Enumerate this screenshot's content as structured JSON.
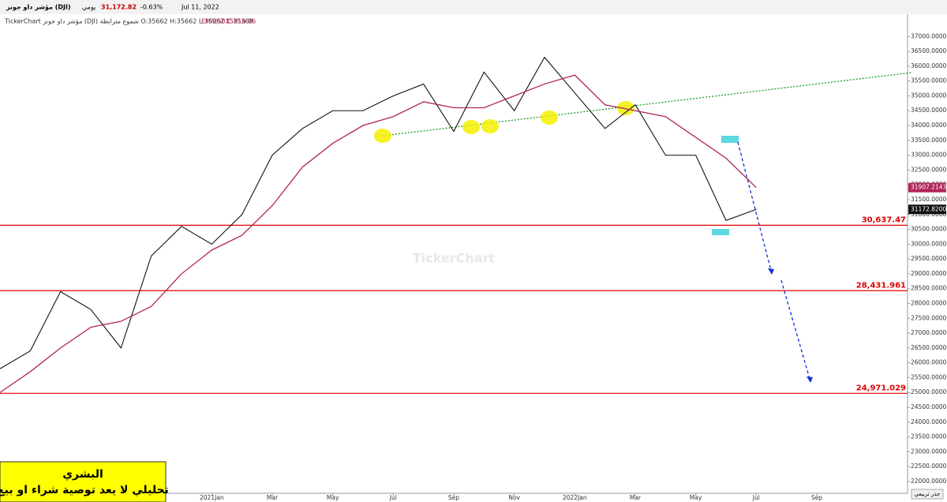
{
  "header": {
    "name": "مؤشر داو جونز (DJI)",
    "period": "يومي",
    "price": "31,172.82",
    "arrow": "▼",
    "change": "-0.63%",
    "date": "Jul 11, 2022",
    "info": "TickerChart مؤشر داو جونز (DJI) شموع مترابطة O:35662 H:35662 L:35262 C:35368",
    "ema_label": "EMA(50)",
    "ema_value": "35816.96"
  },
  "watermark": "TickerChart",
  "note": {
    "author": "البشري",
    "disclaimer": "تحليلي لا يعد توصية شراء او بيع"
  },
  "scale_button": "جذر تربيعي",
  "chart_data": {
    "type": "line",
    "x": [
      "2020-06",
      "2020-07",
      "2020-08",
      "2020-09",
      "2020-10",
      "2020-11",
      "2020-12",
      "2021-01",
      "2021-02",
      "2021-03",
      "2021-04",
      "2021-05",
      "2021-06",
      "2021-07",
      "2021-08",
      "2021-09",
      "2021-10",
      "2021-11",
      "2021-12",
      "2022-01",
      "2022-02",
      "2022-03",
      "2022-04",
      "2022-05",
      "2022-06",
      "2022-07"
    ],
    "series": [
      {
        "name": "DJI",
        "color": "#111111",
        "values": [
          25800,
          26400,
          28400,
          27800,
          26500,
          29600,
          30600,
          30000,
          31000,
          33000,
          33900,
          34500,
          34500,
          35000,
          35400,
          33800,
          35800,
          34500,
          36300,
          35100,
          33900,
          34700,
          33000,
          33000,
          30800,
          31173
        ]
      },
      {
        "name": "EMA(50)",
        "color": "#b0245a",
        "values": [
          25000,
          25700,
          26500,
          27200,
          27400,
          27900,
          29000,
          29800,
          30300,
          31300,
          32600,
          33400,
          34000,
          34300,
          34800,
          34600,
          34600,
          35000,
          35400,
          35700,
          34700,
          34500,
          34300,
          33600,
          32900,
          31907
        ]
      }
    ],
    "xlim": [
      "2020-06",
      "2022-12"
    ],
    "xticks": [
      {
        "value": "2021-01",
        "label": "2021Jan"
      },
      {
        "value": "2021-03",
        "label": "Mar"
      },
      {
        "value": "2021-05",
        "label": "May"
      },
      {
        "value": "2021-07",
        "label": "Jul"
      },
      {
        "value": "2021-09",
        "label": "Sep"
      },
      {
        "value": "2021-11",
        "label": "Nov"
      },
      {
        "value": "2022-01",
        "label": "2022Jan"
      },
      {
        "value": "2022-03",
        "label": "Mar"
      },
      {
        "value": "2022-05",
        "label": "May"
      },
      {
        "value": "2022-07",
        "label": "Jul"
      },
      {
        "value": "2022-09",
        "label": "Sep"
      }
    ],
    "ylim": [
      21600,
      37700
    ],
    "yticks": [
      {
        "value": 22000,
        "label": "22000.0000"
      },
      {
        "value": 22500,
        "label": "22500.0000"
      },
      {
        "value": 23000,
        "label": "23000.0000"
      },
      {
        "value": 23500,
        "label": "23500.0000"
      },
      {
        "value": 24000,
        "label": "24000.0000"
      },
      {
        "value": 24500,
        "label": "24500.0000"
      },
      {
        "value": 25000,
        "label": "25000.0000"
      },
      {
        "value": 25500,
        "label": "25500.0000"
      },
      {
        "value": 26000,
        "label": "26000.0000"
      },
      {
        "value": 26500,
        "label": "26500.0000"
      },
      {
        "value": 27000,
        "label": "27000.0000"
      },
      {
        "value": 27500,
        "label": "27500.0000"
      },
      {
        "value": 28000,
        "label": "28000.0000"
      },
      {
        "value": 28500,
        "label": "28500.0000"
      },
      {
        "value": 29000,
        "label": "29000.0000"
      },
      {
        "value": 29500,
        "label": "29500.0000"
      },
      {
        "value": 30000,
        "label": "30000.0000"
      },
      {
        "value": 30500,
        "label": "30500.0000"
      },
      {
        "value": 31000,
        "label": "31000.0000"
      },
      {
        "value": 31500,
        "label": "31500.0000"
      },
      {
        "value": 32000,
        "label": "32000.0000"
      },
      {
        "value": 32500,
        "label": "32500.0000"
      },
      {
        "value": 33000,
        "label": "33000.0000"
      },
      {
        "value": 33500,
        "label": "33500.0000"
      },
      {
        "value": 34000,
        "label": "34000.0000"
      },
      {
        "value": 34500,
        "label": "34500.0000"
      },
      {
        "value": 35000,
        "label": "35000.0000"
      },
      {
        "value": 35500,
        "label": "35500.0000"
      },
      {
        "value": 36000,
        "label": "36000.0000"
      },
      {
        "value": 36500,
        "label": "36500.0000"
      },
      {
        "value": 37000,
        "label": "37000.0000"
      }
    ],
    "levels": {
      "values": [
        30637.47,
        28431.961,
        24971.029
      ],
      "value_labels": [
        "30,637.47",
        "28,431.961",
        "24,971.029"
      ],
      "color": "#e00000"
    },
    "price_tags": [
      {
        "value": 31907.2143,
        "label": "31907.2143",
        "color": "#b0245a"
      },
      {
        "value": 31172.82,
        "label": "31172.8200",
        "color": "#111111"
      }
    ]
  }
}
